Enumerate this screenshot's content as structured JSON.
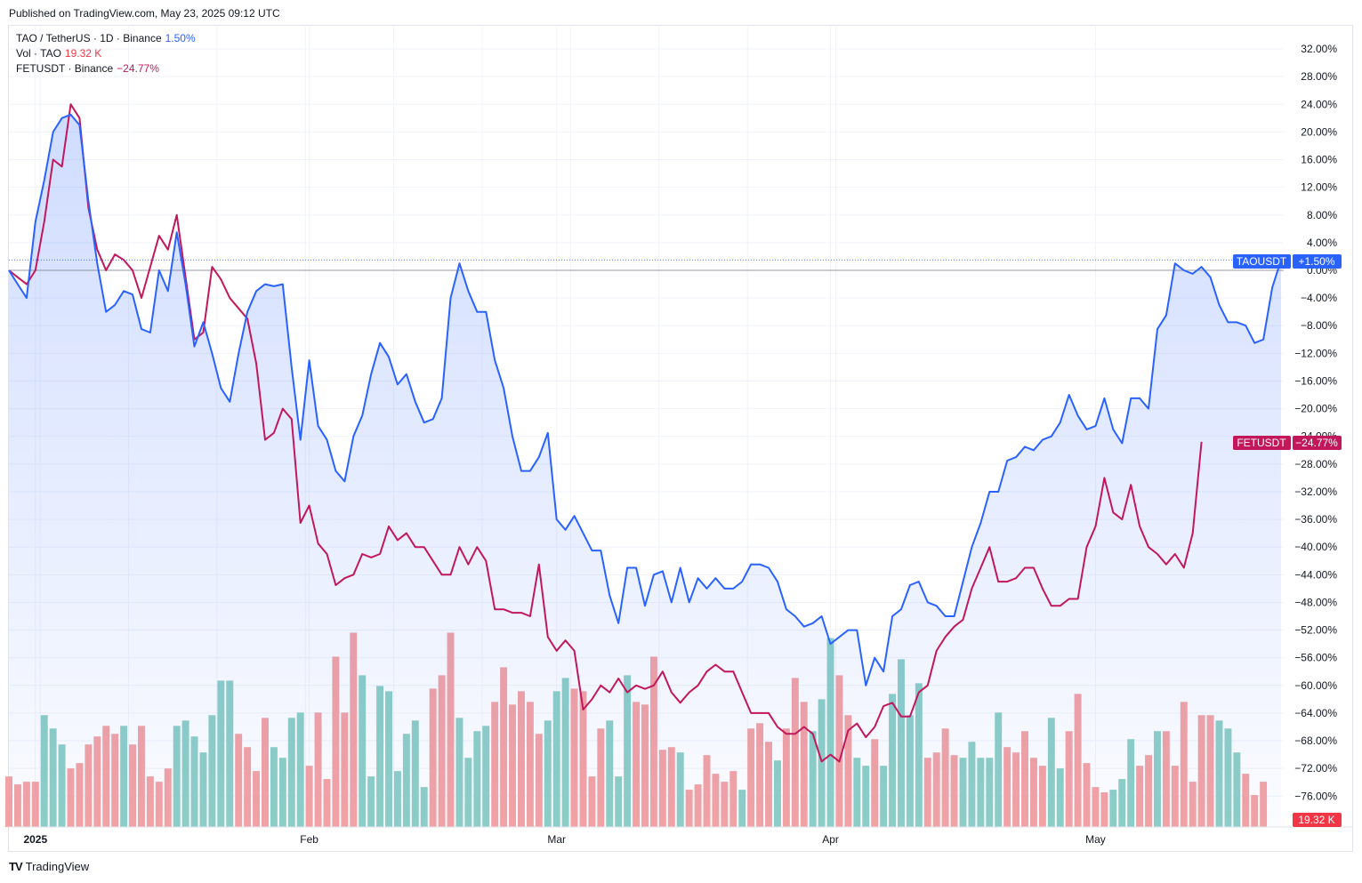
{
  "header": {
    "published": "Published on TradingView.com, May 23, 2025 09:12 UTC"
  },
  "legend": {
    "main": {
      "label": "TAO / TetherUS · 1D · Binance",
      "value": "1.50%"
    },
    "vol": {
      "label": "Vol · TAO",
      "value": "19.32 K"
    },
    "compare": {
      "label": "FETUSDT · Binance",
      "value": "−24.77%"
    }
  },
  "badges": {
    "tao": {
      "name": "TAOUSDT",
      "value": "+1.50%"
    },
    "fet": {
      "name": "FETUSDT",
      "value": "−24.77%"
    },
    "vol": {
      "value": "19.32 K"
    }
  },
  "footer": {
    "brand": "TradingView",
    "logo": "tradingview-logo-icon"
  },
  "colors": {
    "tao": "#2962ff",
    "fet": "#c2185b",
    "vol_up": "#8ecfc6",
    "vol_down": "#f4a3a3",
    "grid": "#f0f3fa",
    "text": "#131722"
  },
  "chart_data": {
    "type": "line",
    "x_axis": {
      "tick_labels": [
        "2025",
        "Feb",
        "Mar",
        "Apr",
        "May"
      ],
      "tick_index": [
        3,
        34,
        62,
        93,
        123
      ]
    },
    "y_axis": {
      "unit": "%",
      "ylim": [
        -80,
        33
      ],
      "tick_labels": [
        "32.00%",
        "28.00%",
        "24.00%",
        "20.00%",
        "16.00%",
        "12.00%",
        "8.00%",
        "4.00%",
        "0.00%",
        "−4.00%",
        "−8.00%",
        "−12.00%",
        "−16.00%",
        "−20.00%",
        "−24.00%",
        "−28.00%",
        "−32.00%",
        "−36.00%",
        "−40.00%",
        "−44.00%",
        "−48.00%",
        "−52.00%",
        "−56.00%",
        "−60.00%",
        "−64.00%",
        "−68.00%",
        "−72.00%",
        "−76.00%"
      ],
      "tick_values": [
        32,
        28,
        24,
        20,
        16,
        12,
        8,
        4,
        0,
        -4,
        -8,
        -12,
        -16,
        -20,
        -24,
        -28,
        -32,
        -36,
        -40,
        -44,
        -48,
        -52,
        -56,
        -60,
        -64,
        -68,
        -72,
        -76
      ]
    },
    "grid": true,
    "series": [
      {
        "name": "TAOUSDT",
        "values": [
          0,
          -2,
          -4,
          7,
          13,
          20,
          22,
          22.5,
          21,
          10,
          1,
          -6,
          -5,
          -3,
          -3.5,
          -8.5,
          -9,
          0,
          -3,
          5.5,
          -2,
          -11,
          -7.5,
          -12,
          -17,
          -19,
          -12,
          -6,
          -3,
          -2,
          -2.3,
          -2,
          -14,
          -24.5,
          -13,
          -22.5,
          -24.5,
          -29,
          -30.5,
          -24,
          -21,
          -15,
          -10.5,
          -12.5,
          -16.5,
          -15,
          -19,
          -22,
          -21.5,
          -18.5,
          -4,
          1,
          -3,
          -6,
          -6,
          -13,
          -17,
          -24,
          -29,
          -29,
          -27,
          -23.5,
          -36,
          -37.5,
          -35.5,
          -38,
          -40.5,
          -40.5,
          -47,
          -51,
          -43,
          -43,
          -48.5,
          -44,
          -43.5,
          -48,
          -43,
          -48,
          -44.5,
          -46,
          -44.5,
          -46,
          -46,
          -45,
          -42.5,
          -42.5,
          -43,
          -45,
          -49,
          -50,
          -51.5,
          -51,
          -50,
          -54,
          -53,
          -52,
          -52,
          -60,
          -56,
          -58,
          -50,
          -49,
          -45.5,
          -45,
          -48,
          -48.5,
          -50,
          -50,
          -45,
          -40,
          -36.5,
          -32,
          -32,
          -27.5,
          -27,
          -25.5,
          -26,
          -24.5,
          -24,
          -22,
          -18,
          -21,
          -23,
          -22.5,
          -18.5,
          -23,
          -25,
          -18.5,
          -18.5,
          -20,
          -8.5,
          -6.5,
          1,
          0,
          -0.5,
          0.5,
          -1,
          -5,
          -7.5,
          -7.5,
          -8,
          -10.5,
          -10,
          -2.5,
          1.5
        ]
      },
      {
        "name": "FETUSDT",
        "values": [
          0,
          -1,
          -2,
          0,
          7,
          16,
          15,
          24,
          22,
          9,
          3,
          0,
          2.3,
          1.5,
          0,
          -4,
          0.5,
          5,
          3,
          8,
          -1,
          -10,
          -9,
          0.5,
          -1.3,
          -4,
          -5.5,
          -7,
          -13.5,
          -24.5,
          -23.5,
          -20,
          -21.5,
          -36.5,
          -34,
          -39.5,
          -41,
          -45.5,
          -44.5,
          -44,
          -41,
          -41.5,
          -41,
          -37,
          -39,
          -38,
          -40,
          -40,
          -42,
          -44,
          -44,
          -40,
          -42.5,
          -40,
          -42,
          -49,
          -49,
          -49.5,
          -49.5,
          -50,
          -42.5,
          -53,
          -55,
          -53.5,
          -55,
          -63.5,
          -62,
          -60,
          -61,
          -59,
          -61,
          -60,
          -60.5,
          -60,
          -58,
          -61,
          -62.5,
          -61,
          -60,
          -58,
          -57,
          -58,
          -58,
          -61,
          -64,
          -64,
          -64,
          -66,
          -67,
          -67,
          -66,
          -67,
          -71,
          -70,
          -71,
          -66.5,
          -65.5,
          -67.5,
          -66,
          -63,
          -62.5,
          -64.5,
          -64.5,
          -61,
          -60,
          -55,
          -53,
          -51.5,
          -50.5,
          -46,
          -43,
          -40,
          -45,
          -45,
          -44.5,
          -43,
          -43,
          -46,
          -48.5,
          -48.5,
          -47.5,
          -47.5,
          -40,
          -37,
          -30,
          -35,
          -36,
          -31,
          -37,
          -40,
          -41,
          -42.5,
          -41,
          -43,
          -38,
          -24.8
        ]
      }
    ],
    "volume": {
      "name": "Vol · TAO",
      "values": [
        19,
        16,
        17,
        17,
        42,
        37,
        31,
        22,
        24,
        31,
        34,
        38,
        35,
        38,
        31,
        38,
        19,
        17,
        22,
        38,
        40,
        34,
        28,
        42,
        55,
        55,
        35,
        30,
        21,
        41,
        30,
        26,
        41,
        43,
        23,
        43,
        18,
        64,
        43,
        73,
        57,
        19,
        53,
        51,
        21,
        35,
        40,
        15,
        52,
        57,
        73,
        41,
        26,
        36,
        38,
        47,
        60,
        46,
        51,
        47,
        35,
        40,
        51,
        56,
        52,
        51,
        19,
        37,
        40,
        19,
        57,
        47,
        46,
        64,
        29,
        30,
        28,
        14,
        16,
        27,
        20,
        17,
        21,
        14,
        37,
        39,
        32,
        25,
        37,
        56,
        47,
        36,
        48,
        71,
        57,
        42,
        26,
        23,
        33,
        23,
        50,
        63,
        42,
        54,
        26,
        28,
        37,
        27,
        26,
        32,
        26,
        26,
        43,
        30,
        28,
        36,
        26,
        23,
        41,
        22,
        36,
        50,
        24,
        15,
        13,
        14,
        18,
        33,
        23,
        27,
        36,
        36,
        23,
        47,
        17,
        42,
        42,
        40,
        37,
        28,
        20,
        12,
        17
      ],
      "up": [
        0,
        0,
        0,
        0,
        1,
        1,
        1,
        0,
        0,
        0,
        0,
        0,
        0,
        1,
        0,
        0,
        0,
        0,
        0,
        1,
        1,
        1,
        1,
        1,
        1,
        1,
        0,
        0,
        0,
        0,
        1,
        1,
        1,
        1,
        0,
        0,
        0,
        0,
        0,
        0,
        1,
        1,
        1,
        1,
        1,
        1,
        1,
        1,
        0,
        0,
        0,
        1,
        1,
        1,
        1,
        0,
        0,
        0,
        0,
        0,
        0,
        1,
        1,
        1,
        0,
        0,
        0,
        0,
        1,
        1,
        1,
        0,
        0,
        0,
        0,
        0,
        1,
        0,
        0,
        0,
        0,
        0,
        0,
        1,
        0,
        0,
        0,
        1,
        0,
        0,
        0,
        1,
        1,
        1,
        0,
        0,
        1,
        1,
        0,
        1,
        1,
        1,
        1,
        1,
        0,
        0,
        0,
        0,
        1,
        1,
        1,
        1,
        1,
        0,
        0,
        0,
        0,
        0,
        1,
        1,
        0,
        0,
        0,
        0,
        0,
        1,
        1,
        1,
        0,
        0,
        1,
        0,
        0,
        0,
        0,
        0,
        0,
        1,
        1,
        1,
        0,
        0,
        0
      ]
    }
  }
}
